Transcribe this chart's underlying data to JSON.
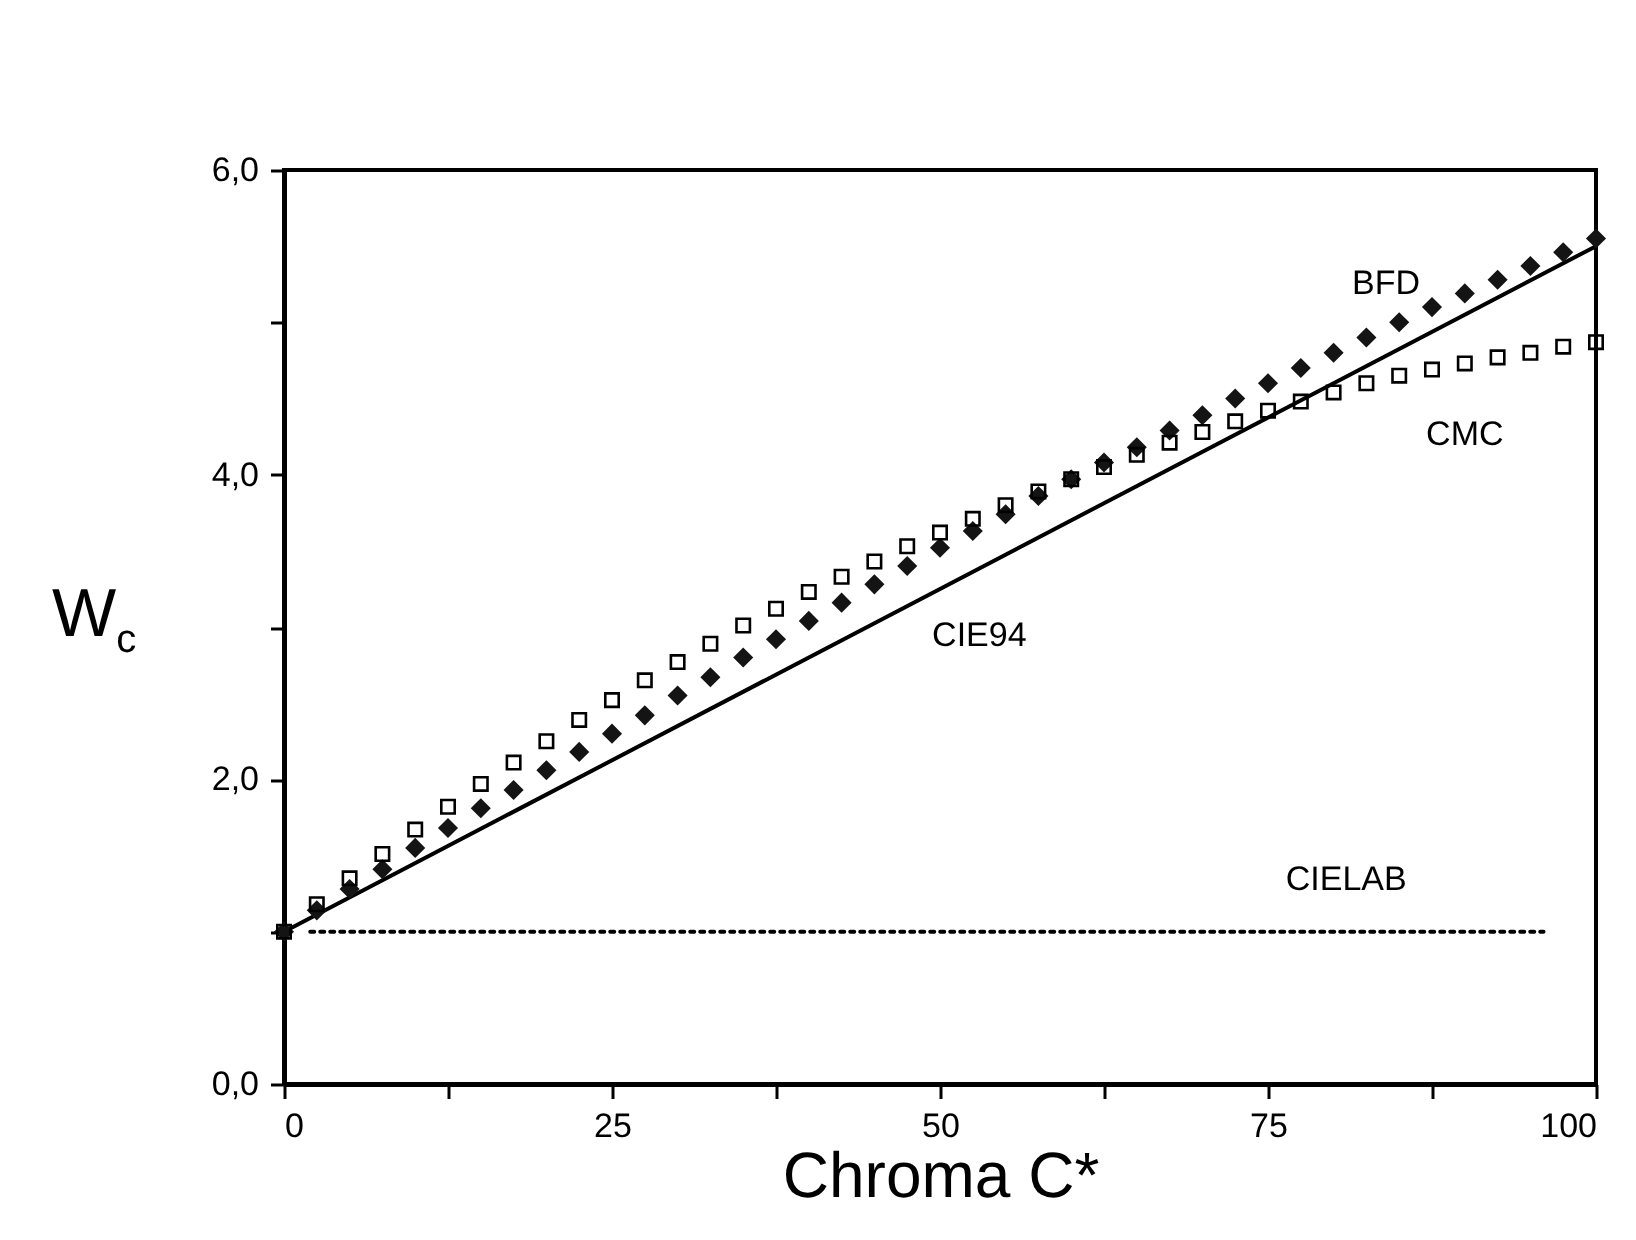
{
  "chart_data": {
    "type": "scatter",
    "xlabel": "Chroma C*",
    "ylabel": "W$_{c}$",
    "xlim": [
      0,
      100
    ],
    "ylim": [
      0,
      6
    ],
    "xticks": [
      0,
      {
        "value": 12.5,
        "label": null
      },
      25,
      {
        "value": 37.5,
        "label": null
      },
      50,
      {
        "value": 62.5,
        "label": null
      },
      75,
      {
        "value": 87.5,
        "label": null
      },
      100
    ],
    "yticks": [
      {
        "value": 0,
        "label": "0,0"
      },
      {
        "value": 1,
        "label": null
      },
      {
        "value": 2,
        "label": "2,0"
      },
      {
        "value": 3,
        "label": null
      },
      {
        "value": 4,
        "label": "4,0"
      },
      {
        "value": 5,
        "label": null
      },
      {
        "value": 6,
        "label": "6,0"
      }
    ],
    "x": [
      0,
      2.5,
      5,
      7.5,
      10,
      12.5,
      15,
      17.5,
      20,
      22.5,
      25,
      27.5,
      30,
      32.5,
      35,
      37.5,
      40,
      42.5,
      45,
      47.5,
      50,
      52.5,
      55,
      57.5,
      60,
      62.5,
      65,
      67.5,
      70,
      72.5,
      75,
      77.5,
      80,
      82.5,
      85,
      87.5,
      90,
      92.5,
      95,
      97.5,
      100
    ],
    "series": [
      {
        "name": "CIELAB",
        "type": "line",
        "color": "#000000",
        "line_style": "dotted",
        "marker": "none",
        "x": [
          2,
          96
        ],
        "values": [
          1.0,
          1.0
        ]
      },
      {
        "name": "CIE94",
        "type": "line",
        "color": "#000000",
        "line_style": "solid",
        "marker": "none",
        "x": [
          0,
          100
        ],
        "values": [
          1.0,
          5.5
        ]
      },
      {
        "name": "BFD",
        "color": "#141414",
        "marker": "diamond",
        "values": [
          1.0,
          1.14,
          1.28,
          1.41,
          1.55,
          1.68,
          1.81,
          1.93,
          2.06,
          2.18,
          2.3,
          2.42,
          2.55,
          2.67,
          2.8,
          2.92,
          3.04,
          3.16,
          3.28,
          3.4,
          3.52,
          3.63,
          3.74,
          3.86,
          3.97,
          4.08,
          4.18,
          4.29,
          4.39,
          4.5,
          4.6,
          4.7,
          4.8,
          4.9,
          5.0,
          5.1,
          5.19,
          5.28,
          5.37,
          5.46,
          5.55
        ]
      },
      {
        "name": "CMC",
        "color": "#000000",
        "marker": "square",
        "values": [
          1.0,
          1.18,
          1.35,
          1.51,
          1.67,
          1.82,
          1.97,
          2.11,
          2.25,
          2.39,
          2.52,
          2.65,
          2.77,
          2.89,
          3.01,
          3.12,
          3.23,
          3.33,
          3.43,
          3.53,
          3.62,
          3.71,
          3.8,
          3.89,
          3.97,
          4.05,
          4.13,
          4.21,
          4.28,
          4.35,
          4.42,
          4.48,
          4.54,
          4.6,
          4.65,
          4.69,
          4.73,
          4.77,
          4.8,
          4.84,
          4.87
        ]
      }
    ]
  }
}
